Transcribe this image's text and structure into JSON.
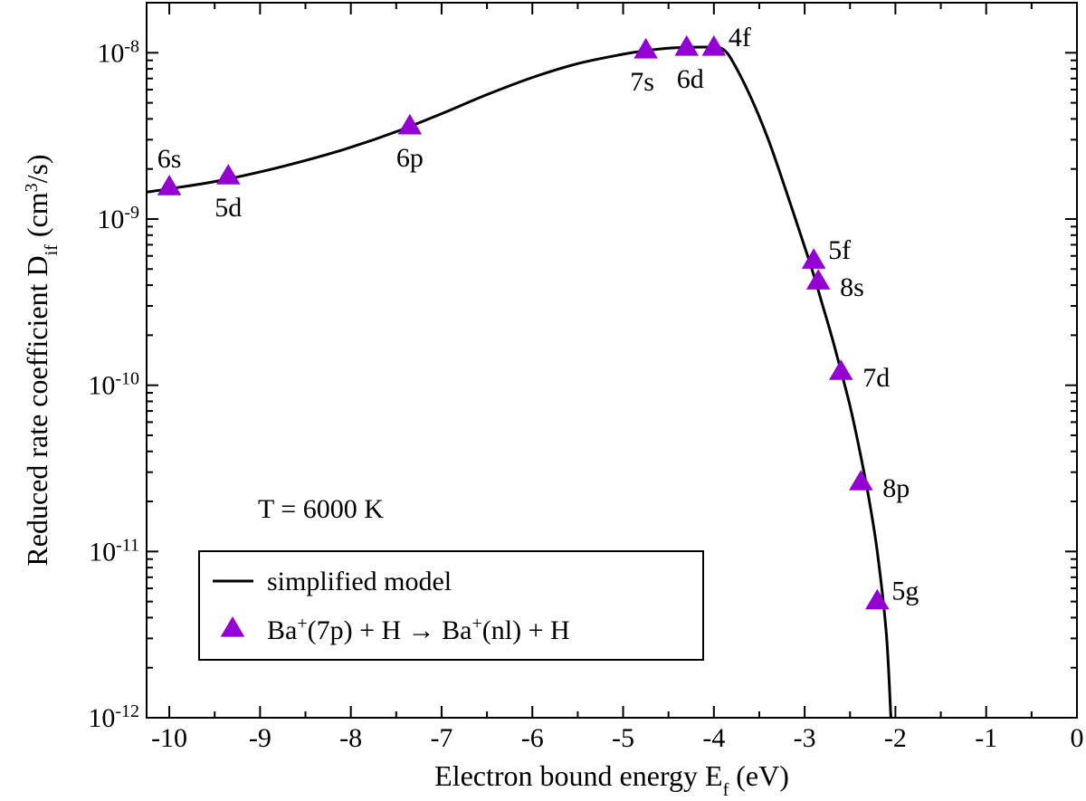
{
  "chart_data": {
    "type": "scatter",
    "title": "",
    "xlabel": {
      "main": "Electron bound energy E",
      "sub": "f",
      "unit": " (eV)"
    },
    "ylabel": {
      "main": "Reduced rate coefficient D",
      "sub": "if",
      "unit_pre": " (cm",
      "unit_sup": "3",
      "unit_post": "/s)"
    },
    "xlim": [
      -10.25,
      0
    ],
    "ylim": [
      1e-12,
      2e-08
    ],
    "yscale": "log",
    "x_ticks": [
      -10,
      -9,
      -8,
      -7,
      -6,
      -5,
      -4,
      -3,
      -2,
      -1,
      0
    ],
    "x_tick_labels": [
      "-10",
      "-9",
      "-8",
      "-7",
      "-6",
      "-5",
      "-4",
      "-3",
      "-2",
      "-1",
      "0"
    ],
    "y_ticks": [
      {
        "value": 1e-12,
        "base": "10",
        "exp": "-12"
      },
      {
        "value": 1e-11,
        "base": "10",
        "exp": "-11"
      },
      {
        "value": 1e-10,
        "base": "10",
        "exp": "-10"
      },
      {
        "value": 1e-09,
        "base": "10",
        "exp": "-9"
      },
      {
        "value": 1e-08,
        "base": "10",
        "exp": "-8"
      }
    ],
    "annotation": "T = 6000 K",
    "legend": {
      "placement": "bottom-left",
      "entries": [
        {
          "marker": "line",
          "label": "simplified model"
        },
        {
          "marker": "triangle",
          "parts": [
            "Ba",
            "+",
            "(7p) + H → Ba",
            "+",
            "(nl) + H"
          ]
        }
      ]
    },
    "series": [
      {
        "name": "simplified model",
        "kind": "line",
        "color": "#000000",
        "x": [
          -10.25,
          -10.0,
          -9.5,
          -9.0,
          -8.5,
          -8.0,
          -7.5,
          -7.0,
          -6.5,
          -6.0,
          -5.5,
          -5.0,
          -4.75,
          -4.5,
          -4.25,
          -4.0,
          -3.9,
          -3.8,
          -3.6,
          -3.4,
          -3.2,
          -3.0,
          -2.9,
          -2.8,
          -2.7,
          -2.6,
          -2.5,
          -2.4,
          -2.3,
          -2.2,
          -2.1,
          -2.05
        ],
        "y": [
          1.45e-09,
          1.52e-09,
          1.68e-09,
          1.92e-09,
          2.25e-09,
          2.7e-09,
          3.35e-09,
          4.3e-09,
          5.6e-09,
          7.1e-09,
          8.6e-09,
          9.8e-09,
          1.03e-08,
          1.065e-08,
          1.08e-08,
          1.08e-08,
          1.05e-08,
          9e-09,
          5.5e-09,
          3e-09,
          1.45e-09,
          6.8e-10,
          4.6e-10,
          3e-10,
          1.95e-10,
          1.22e-10,
          7.5e-11,
          4.2e-11,
          2.2e-11,
          1e-11,
          3.2e-12,
          1e-12
        ]
      },
      {
        "name": "Ba+(7p) + H → Ba+(nl) + H",
        "kind": "points",
        "marker": "triangle",
        "color": "#9400D3",
        "points": [
          {
            "label": "6s",
            "x": -10.0,
            "y": 1.55e-09,
            "label_pos": "above"
          },
          {
            "label": "5d",
            "x": -9.35,
            "y": 1.8e-09,
            "label_pos": "below"
          },
          {
            "label": "6p",
            "x": -7.35,
            "y": 3.6e-09,
            "label_pos": "below"
          },
          {
            "label": "7s",
            "x": -4.75,
            "y": 1.03e-08,
            "label_pos": "below"
          },
          {
            "label": "6d",
            "x": -4.3,
            "y": 1.07e-08,
            "label_pos": "below"
          },
          {
            "label": "4f",
            "x": -4.0,
            "y": 1.07e-08,
            "label_pos": "right-up"
          },
          {
            "label": "5f",
            "x": -2.9,
            "y": 5.6e-10,
            "label_pos": "right-up"
          },
          {
            "label": "8s",
            "x": -2.85,
            "y": 4.2e-10,
            "label_pos": "right"
          },
          {
            "label": "7d",
            "x": -2.6,
            "y": 1.2e-10,
            "label_pos": "right"
          },
          {
            "label": "8p",
            "x": -2.38,
            "y": 2.6e-11,
            "label_pos": "right"
          },
          {
            "label": "5g",
            "x": -2.2,
            "y": 5e-12,
            "label_pos": "right-up"
          }
        ]
      }
    ]
  }
}
